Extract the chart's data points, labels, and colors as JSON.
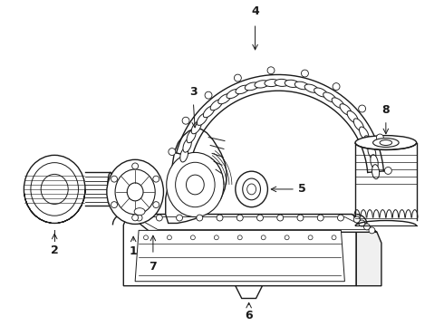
{
  "bg_color": "#ffffff",
  "line_color": "#1a1a1a",
  "line_width": 1.0,
  "fig_width": 4.9,
  "fig_height": 3.6,
  "dpi": 100
}
